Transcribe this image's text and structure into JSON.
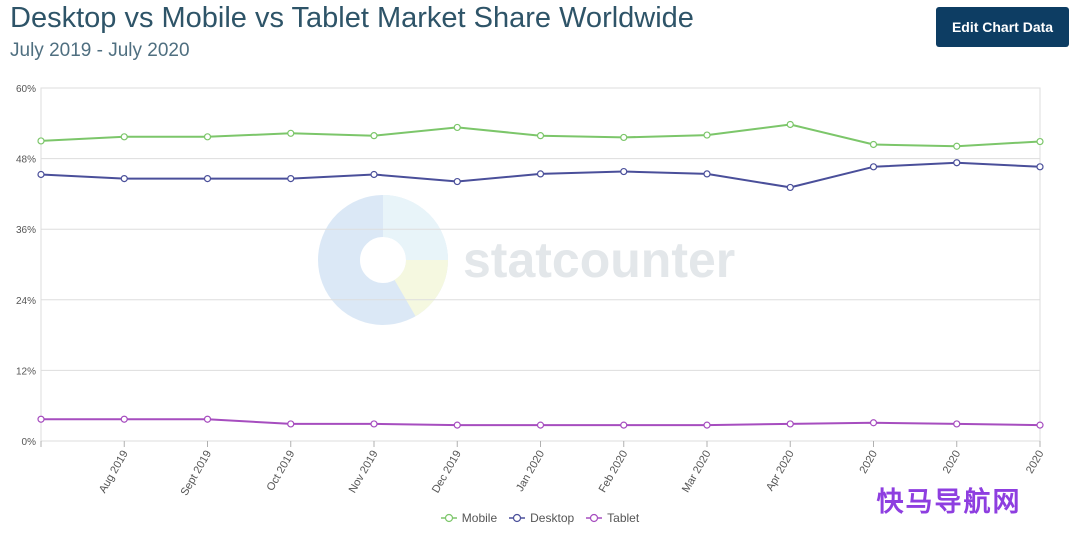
{
  "header": {
    "title": "Desktop vs Mobile vs Tablet Market Share Worldwide",
    "subtitle": "July 2019 - July 2020",
    "edit_button_label": "Edit Chart Data"
  },
  "watermark": {
    "brand": "statcounter",
    "corner_text": "快马导航网"
  },
  "colors": {
    "mobile": "#7cc66a",
    "desktop": "#4a4f9a",
    "tablet": "#a64dbf",
    "grid": "#dddddd",
    "axis_text": "#555555"
  },
  "chart_data": {
    "type": "line",
    "title": "Desktop vs Mobile vs Tablet Market Share Worldwide",
    "subtitle": "July 2019 - July 2020",
    "categories": [
      "",
      "Aug 2019",
      "Sept 2019",
      "Oct 2019",
      "Nov 2019",
      "Dec 2019",
      "Jan 2020",
      "Feb 2020",
      "Mar 2020",
      "Apr 2020",
      "2020",
      "2020",
      "2020"
    ],
    "ylim": [
      0,
      60
    ],
    "yticks": [
      "0%",
      "12%",
      "24%",
      "36%",
      "48%",
      "60%"
    ],
    "ytick_values": [
      0,
      12,
      24,
      36,
      48,
      60
    ],
    "grid": true,
    "legend_position": "bottom-center",
    "series": [
      {
        "name": "Mobile",
        "color": "#7cc66a",
        "values": [
          51.0,
          51.7,
          51.7,
          52.3,
          51.9,
          53.3,
          51.9,
          51.6,
          52.0,
          53.8,
          50.4,
          50.1,
          50.9
        ]
      },
      {
        "name": "Desktop",
        "color": "#4a4f9a",
        "values": [
          45.3,
          44.6,
          44.6,
          44.6,
          45.3,
          44.1,
          45.4,
          45.8,
          45.4,
          43.1,
          46.6,
          47.3,
          46.6
        ]
      },
      {
        "name": "Tablet",
        "color": "#a64dbf",
        "values": [
          3.7,
          3.7,
          3.7,
          2.9,
          2.9,
          2.7,
          2.7,
          2.7,
          2.7,
          2.9,
          3.1,
          2.9,
          2.7
        ]
      }
    ]
  }
}
